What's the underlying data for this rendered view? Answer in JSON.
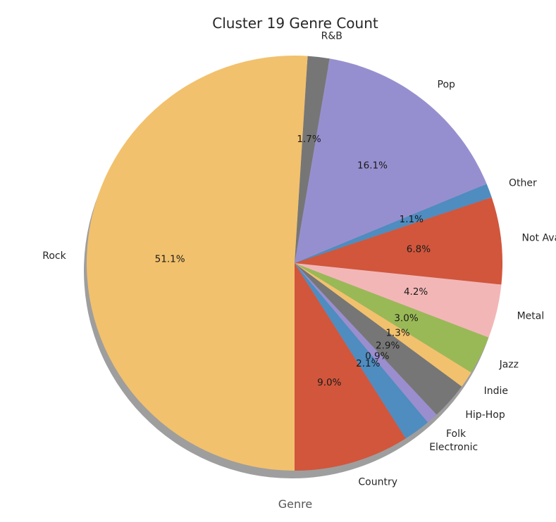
{
  "chart_data": {
    "type": "pie",
    "title": "Cluster 19 Genre Count",
    "xlabel": "Genre",
    "ylabel": "",
    "shadow": true,
    "start_angle_deg": 270,
    "direction": "counterclockwise",
    "slices": [
      {
        "label": "Country",
        "value": 9.0,
        "pct_label": "9.0%",
        "color": "#d1563c"
      },
      {
        "label": "Electronic",
        "value": 2.1,
        "pct_label": "2.1%",
        "color": "#4f8cc0"
      },
      {
        "label": "Folk",
        "value": 0.9,
        "pct_label": "0.9%",
        "color": "#9a8ecf"
      },
      {
        "label": "Hip-Hop",
        "value": 2.9,
        "pct_label": "2.9%",
        "color": "#767676"
      },
      {
        "label": "Indie",
        "value": 1.3,
        "pct_label": "1.3%",
        "color": "#f2c16d"
      },
      {
        "label": "Jazz",
        "value": 3.0,
        "pct_label": "3.0%",
        "color": "#99b956"
      },
      {
        "label": "Metal",
        "value": 4.2,
        "pct_label": "4.2%",
        "color": "#f3b6b6"
      },
      {
        "label": "Not Available",
        "value": 6.8,
        "pct_label": "6.8%",
        "color": "#d1563c"
      },
      {
        "label": "Other",
        "value": 1.1,
        "pct_label": "1.1%",
        "color": "#4f8cc0"
      },
      {
        "label": "Pop",
        "value": 16.1,
        "pct_label": "16.1%",
        "color": "#968fcf"
      },
      {
        "label": "R&B",
        "value": 1.7,
        "pct_label": "1.7%",
        "color": "#767676"
      },
      {
        "label": "Rock",
        "value": 51.1,
        "pct_label": "51.1%",
        "color": "#f2c16d"
      }
    ]
  }
}
